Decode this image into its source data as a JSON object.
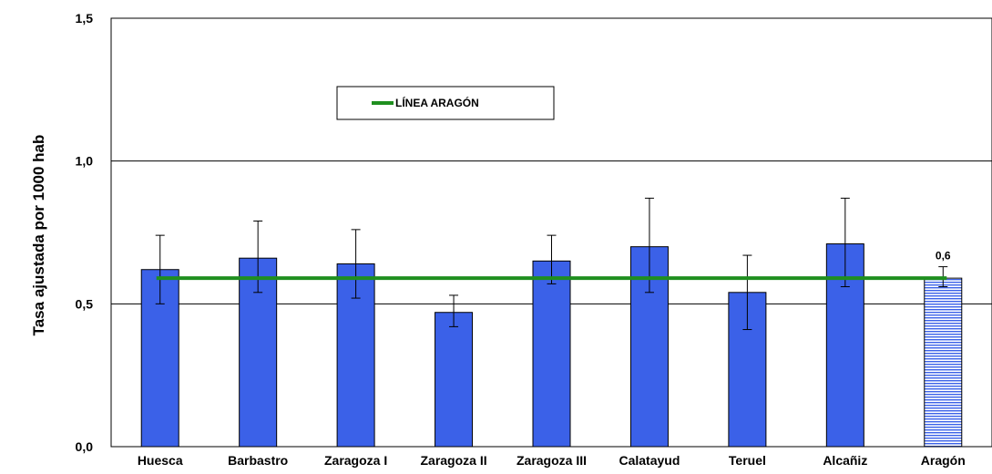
{
  "chart_data": {
    "type": "bar",
    "ylabel": "Tasa ajustada por 1000 hab",
    "ylim": [
      0,
      1.5
    ],
    "yticks": [
      "0,0",
      "0,5",
      "1,0",
      "1,5"
    ],
    "grid": "horizontal",
    "legend_position": "top-left",
    "categories": [
      "Huesca",
      "Barbastro",
      "Zaragoza I",
      "Zaragoza II",
      "Zaragoza III",
      "Calatayud",
      "Teruel",
      "Alcañiz",
      "Aragón"
    ],
    "values": [
      0.62,
      0.66,
      0.64,
      0.47,
      0.65,
      0.7,
      0.54,
      0.71,
      0.59
    ],
    "error_low": [
      0.5,
      0.54,
      0.52,
      0.42,
      0.57,
      0.54,
      0.41,
      0.56,
      0.56
    ],
    "error_high": [
      0.74,
      0.79,
      0.76,
      0.53,
      0.74,
      0.87,
      0.67,
      0.87,
      0.63
    ],
    "highlight_category": "Aragón",
    "data_labels": [
      {
        "category": "Aragón",
        "text": "0,6"
      }
    ],
    "reference_line": {
      "label": "LÍNEA ARAGÓN",
      "value": 0.59,
      "color": "#1f8f1f"
    },
    "bar_color": "#3b61e8",
    "highlight_style": "horizontal-stripes"
  }
}
